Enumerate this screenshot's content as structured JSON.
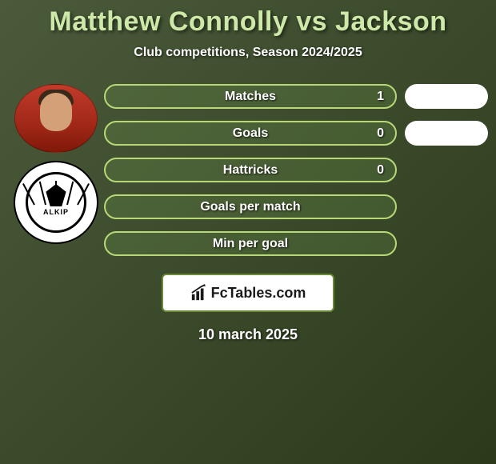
{
  "title": "Matthew Connolly vs Jackson",
  "subtitle": "Club competitions, Season 2024/2025",
  "date": "10 march 2025",
  "brand": "FcTables.com",
  "avatars": {
    "player2_logo_text": "ALKIP"
  },
  "stats": [
    {
      "label": "Matches",
      "value": "1",
      "show_pill": true,
      "pill_text": ""
    },
    {
      "label": "Goals",
      "value": "0",
      "show_pill": true,
      "pill_text": ""
    },
    {
      "label": "Hattricks",
      "value": "0",
      "show_pill": false
    },
    {
      "label": "Goals per match",
      "value": "",
      "show_pill": false
    },
    {
      "label": "Min per goal",
      "value": "",
      "show_pill": false
    }
  ],
  "colors": {
    "title": "#cde8a8",
    "bar_border": "#b8d878",
    "bar_fill": "rgba(150,200,100,0.15)",
    "brand_border": "#6a8a3a"
  }
}
